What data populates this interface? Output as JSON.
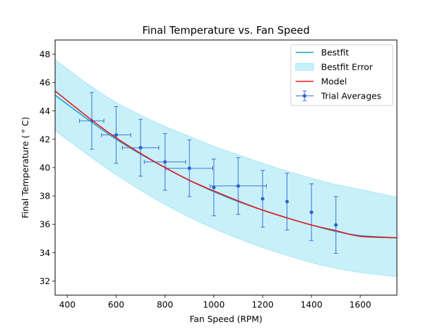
{
  "chart_data": {
    "type": "line",
    "title": "Final Temperature vs. Fan Speed",
    "xlabel": "Fan Speed (RPM)",
    "ylabel": "Final Temperature ($^\\circ C$)",
    "ylabel_display": "Final Temperature ( ° C)",
    "xlim": [
      350,
      1750
    ],
    "ylim": [
      31,
      49
    ],
    "xticks": [
      400,
      600,
      800,
      1000,
      1200,
      1400,
      1600
    ],
    "yticks": [
      32,
      34,
      36,
      38,
      40,
      42,
      44,
      46,
      48
    ],
    "grid": false,
    "legend_position": "top-right",
    "legend": [
      "Bestfit",
      "Bestfit Error",
      "Model",
      "Trial Averages"
    ],
    "colors": {
      "bestfit": "#1f9fd0",
      "error_band": "#c8f0f8",
      "error_band_edge": "#a9e6f3",
      "model": "#e8141c",
      "trial": "#2a62d6"
    },
    "series": [
      {
        "name": "Bestfit",
        "x": [
          350,
          500,
          600,
          700,
          800,
          900,
          1000,
          1100,
          1200,
          1300,
          1400,
          1500,
          1600,
          1750
        ],
        "y": [
          45.1,
          43.2,
          42.0,
          40.95,
          40.0,
          39.1,
          38.3,
          37.6,
          37.0,
          36.45,
          35.95,
          35.5,
          35.2,
          35.05
        ]
      },
      {
        "name": "Bestfit Error",
        "x": [
          350,
          500,
          600,
          700,
          800,
          900,
          1000,
          1100,
          1200,
          1300,
          1400,
          1500,
          1600,
          1750
        ],
        "upper": [
          47.6,
          45.7,
          44.6,
          43.7,
          42.9,
          42.2,
          41.5,
          40.9,
          40.3,
          39.75,
          39.25,
          38.8,
          38.45,
          37.9
        ],
        "lower": [
          42.6,
          40.7,
          39.5,
          38.4,
          37.4,
          36.5,
          35.7,
          35.0,
          34.35,
          33.8,
          33.3,
          32.9,
          32.6,
          32.3
        ]
      },
      {
        "name": "Model",
        "x": [
          350,
          500,
          600,
          700,
          800,
          900,
          1000,
          1100,
          1200,
          1300,
          1400,
          1500,
          1600,
          1750
        ],
        "y": [
          45.4,
          43.35,
          42.1,
          41.0,
          40.0,
          39.1,
          38.35,
          37.65,
          37.0,
          36.45,
          35.95,
          35.55,
          35.15,
          35.05
        ]
      },
      {
        "name": "Trial Averages",
        "x": [
          500,
          600,
          700,
          800,
          900,
          1000,
          1100,
          1200,
          1300,
          1400,
          1500
        ],
        "y": [
          43.3,
          42.3,
          41.4,
          40.4,
          39.95,
          38.6,
          38.7,
          37.8,
          37.6,
          36.85,
          35.95
        ],
        "yerr": [
          2.0,
          2.0,
          2.0,
          2.0,
          2.0,
          2.0,
          2.0,
          2.0,
          2.0,
          2.0,
          2.0
        ],
        "xerr": [
          50,
          60,
          75,
          85,
          95,
          0,
          115,
          0,
          0,
          0,
          0
        ],
        "xerr_lo": [
          50,
          60,
          75,
          85,
          95,
          0,
          115,
          0,
          0,
          0,
          0
        ],
        "xerr_hi": [
          50,
          60,
          75,
          85,
          95,
          0,
          115,
          0,
          0,
          0,
          0
        ]
      }
    ]
  }
}
